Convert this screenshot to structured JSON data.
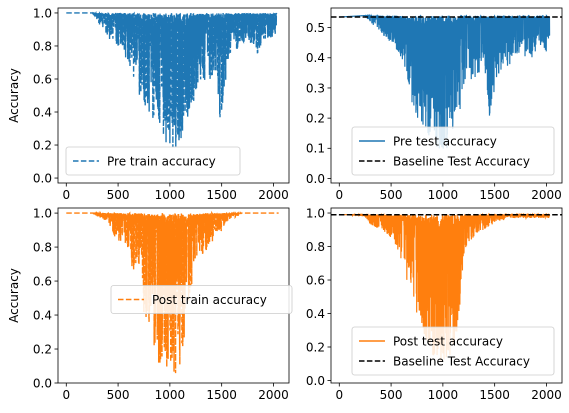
{
  "chart_data": [
    {
      "type": "line",
      "ylabel": "Accuracy",
      "xlim": [
        -80,
        2150
      ],
      "ylim": [
        -0.03,
        1.03
      ],
      "xticks": [
        0,
        500,
        1000,
        1500,
        2000
      ],
      "xtick_labels": [
        "0",
        "500",
        "1000",
        "1500",
        "2000"
      ],
      "yticks": [
        0.0,
        0.2,
        0.4,
        0.6,
        0.8,
        1.0
      ],
      "ytick_labels": [
        "0.0",
        "0.2",
        "0.4",
        "0.6",
        "0.8",
        "1.0"
      ],
      "legend": "lower-left",
      "series": [
        {
          "name": "Pre train accuracy",
          "color": "#1f77b4",
          "style": "dashed",
          "x": [
            0,
            250,
            300,
            400,
            500,
            600,
            650,
            700,
            750,
            800,
            850,
            900,
            950,
            1000,
            1050,
            1100,
            1150,
            1200,
            1250,
            1300,
            1350,
            1400,
            1450,
            1500,
            1550,
            1600,
            1650,
            1700,
            1750,
            1800,
            1850,
            1900,
            1950,
            2000,
            2030
          ],
          "max": [
            1,
            1,
            1,
            1,
            1,
            1,
            1,
            1,
            1,
            1,
            1,
            1,
            1,
            1,
            1,
            1,
            1,
            1,
            1,
            1,
            1,
            1,
            1,
            1,
            1,
            1,
            1,
            1,
            1,
            1,
            1,
            1,
            1,
            1,
            1
          ],
          "min": [
            1,
            1,
            0.95,
            0.85,
            0.8,
            0.7,
            0.6,
            0.5,
            0.45,
            0.35,
            0.3,
            0.25,
            0.2,
            0.17,
            0.17,
            0.22,
            0.35,
            0.4,
            0.5,
            0.6,
            0.55,
            0.6,
            0.65,
            0.2,
            0.7,
            0.75,
            0.78,
            0.8,
            0.82,
            0.8,
            0.75,
            0.82,
            0.85,
            0.85,
            0.88
          ]
        }
      ]
    },
    {
      "type": "line",
      "ylabel": "",
      "xlim": [
        -80,
        2150
      ],
      "ylim": [
        -0.015,
        0.565
      ],
      "xticks": [
        0,
        500,
        1000,
        1500,
        2000
      ],
      "xtick_labels": [
        "0",
        "500",
        "1000",
        "1500",
        "2000"
      ],
      "yticks": [
        0.0,
        0.1,
        0.2,
        0.3,
        0.4,
        0.5
      ],
      "ytick_labels": [
        "0.0",
        "0.1",
        "0.2",
        "0.3",
        "0.4",
        "0.5"
      ],
      "legend": "lower-right",
      "series": [
        {
          "name": "Pre test accuracy",
          "color": "#1f77b4",
          "style": "solid",
          "x": [
            0,
            250,
            300,
            400,
            500,
            600,
            650,
            700,
            750,
            800,
            850,
            900,
            950,
            1000,
            1050,
            1100,
            1150,
            1200,
            1250,
            1300,
            1350,
            1400,
            1450,
            1500,
            1550,
            1600,
            1650,
            1700,
            1750,
            1800,
            1850,
            1900,
            1950,
            2000,
            2030
          ],
          "max": [
            0.535,
            0.54,
            0.54,
            0.54,
            0.54,
            0.54,
            0.54,
            0.54,
            0.54,
            0.54,
            0.54,
            0.54,
            0.54,
            0.54,
            0.54,
            0.54,
            0.54,
            0.54,
            0.54,
            0.54,
            0.54,
            0.54,
            0.54,
            0.54,
            0.54,
            0.54,
            0.54,
            0.54,
            0.54,
            0.54,
            0.54,
            0.54,
            0.54,
            0.54,
            0.54
          ],
          "min": [
            0.535,
            0.535,
            0.52,
            0.48,
            0.45,
            0.4,
            0.35,
            0.25,
            0.2,
            0.18,
            0.15,
            0.12,
            0.1,
            0.09,
            0.1,
            0.12,
            0.18,
            0.3,
            0.35,
            0.3,
            0.33,
            0.36,
            0.2,
            0.3,
            0.35,
            0.38,
            0.35,
            0.4,
            0.42,
            0.4,
            0.38,
            0.42,
            0.44,
            0.42,
            0.45
          ]
        },
        {
          "name": "Baseline Test Accuracy",
          "color": "#000000",
          "style": "dashed",
          "type": "hline",
          "y": 0.535
        }
      ]
    },
    {
      "type": "line",
      "ylabel": "Accuracy",
      "xlim": [
        -80,
        2150
      ],
      "ylim": [
        0.0,
        1.03
      ],
      "xticks": [
        0,
        500,
        1000,
        1500,
        2000
      ],
      "xtick_labels": [
        "0",
        "500",
        "1000",
        "1500",
        "2000"
      ],
      "yticks": [
        0.0,
        0.2,
        0.4,
        0.6,
        0.8,
        1.0
      ],
      "ytick_labels": [
        "0.0",
        "0.2",
        "0.4",
        "0.6",
        "0.8",
        "1.0"
      ],
      "legend": "center",
      "series": [
        {
          "name": "Post train accuracy",
          "color": "#ff7f0e",
          "style": "dashed",
          "x": [
            0,
            250,
            300,
            400,
            500,
            550,
            600,
            650,
            700,
            750,
            800,
            850,
            900,
            950,
            1000,
            1050,
            1100,
            1150,
            1200,
            1250,
            1300,
            1350,
            1400,
            1450,
            1500,
            1550,
            1600,
            1650,
            1700,
            1800,
            1900,
            2000,
            2050
          ],
          "max": [
            1,
            1,
            1,
            1,
            1,
            1,
            1,
            1,
            1,
            1,
            1,
            1,
            1,
            1,
            1,
            1,
            1,
            1,
            1,
            1,
            1,
            1,
            1,
            1,
            1,
            1,
            1,
            1,
            1,
            1,
            1,
            1,
            1
          ],
          "min": [
            1,
            1,
            0.97,
            0.95,
            0.82,
            0.85,
            0.78,
            0.6,
            0.7,
            0.4,
            0.35,
            0.2,
            0.1,
            0.05,
            0.05,
            0.05,
            0.1,
            0.2,
            0.5,
            0.72,
            0.75,
            0.78,
            0.82,
            0.85,
            0.9,
            0.95,
            0.97,
            0.98,
            1,
            1,
            1,
            1,
            1
          ]
        }
      ]
    },
    {
      "type": "line",
      "ylabel": "",
      "xlim": [
        -80,
        2150
      ],
      "ylim": [
        -0.015,
        1.03
      ],
      "xticks": [
        0,
        500,
        1000,
        1500,
        2000
      ],
      "xtick_labels": [
        "0",
        "500",
        "1000",
        "1500",
        "2000"
      ],
      "yticks": [
        0.0,
        0.2,
        0.4,
        0.6,
        0.8,
        1.0
      ],
      "ytick_labels": [
        "0.0",
        "0.2",
        "0.4",
        "0.6",
        "0.8",
        "1.0"
      ],
      "legend": "lower-right",
      "series": [
        {
          "name": "Post test accuracy",
          "color": "#ff7f0e",
          "style": "solid",
          "x": [
            0,
            250,
            300,
            400,
            500,
            550,
            600,
            650,
            700,
            750,
            800,
            850,
            900,
            950,
            1000,
            1050,
            1100,
            1150,
            1200,
            1250,
            1300,
            1350,
            1400,
            1450,
            1500,
            1550,
            1600,
            1650,
            1700,
            1800,
            1900,
            2000,
            2030
          ],
          "max": [
            0.99,
            0.99,
            0.99,
            0.99,
            0.99,
            0.99,
            0.99,
            0.99,
            0.99,
            0.99,
            0.99,
            0.99,
            0.99,
            0.99,
            0.99,
            0.99,
            0.99,
            0.99,
            0.99,
            0.99,
            0.99,
            0.99,
            0.99,
            0.99,
            0.99,
            0.99,
            0.99,
            0.99,
            0.99,
            0.99,
            0.99,
            0.99,
            0.99
          ],
          "min": [
            0.99,
            0.98,
            0.93,
            0.9,
            0.85,
            0.8,
            0.72,
            0.6,
            0.55,
            0.35,
            0.3,
            0.2,
            0.15,
            0.1,
            0.1,
            0.12,
            0.2,
            0.3,
            0.75,
            0.8,
            0.85,
            0.88,
            0.9,
            0.92,
            0.94,
            0.95,
            0.96,
            0.97,
            0.97,
            0.97,
            0.97,
            0.97,
            0.97
          ]
        },
        {
          "name": "Baseline Test Accuracy",
          "color": "#000000",
          "style": "dashed",
          "type": "hline",
          "y": 0.99
        }
      ]
    }
  ]
}
